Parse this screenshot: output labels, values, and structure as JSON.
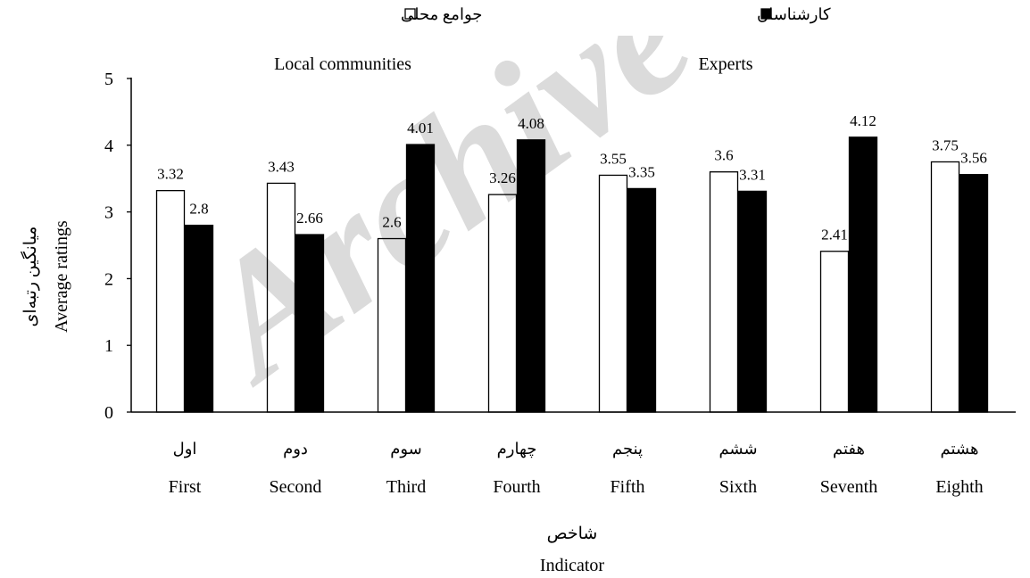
{
  "chart_data": {
    "type": "bar",
    "categories_fa": [
      "اول",
      "دوم",
      "سوم",
      "چهارم",
      "پنجم",
      "ششم",
      "هفتم",
      "هشتم"
    ],
    "categories": [
      "First",
      "Second",
      "Third",
      "Fourth",
      "Fifth",
      "Sixth",
      "Seventh",
      "Eighth"
    ],
    "series": [
      {
        "name_fa": "جوامع محلی",
        "name": "Local communities",
        "fill": "#ffffff",
        "values": [
          3.32,
          3.43,
          2.6,
          3.26,
          3.55,
          3.6,
          2.41,
          3.75
        ]
      },
      {
        "name_fa": "کارشناسان",
        "name": "Experts",
        "fill": "#000000",
        "values": [
          2.8,
          2.66,
          4.01,
          4.08,
          3.35,
          3.31,
          4.12,
          3.56
        ]
      }
    ],
    "xlabel_fa": "شاخص",
    "xlabel": "Indicator",
    "ylabel_fa": "میانگین رتبه‌ای",
    "ylabel": "Average ratings",
    "ylim": [
      0,
      5
    ],
    "yticks": [
      0,
      1,
      2,
      3,
      4,
      5
    ],
    "legend_position": "top",
    "grid": false
  },
  "watermark": "Archive of SID"
}
